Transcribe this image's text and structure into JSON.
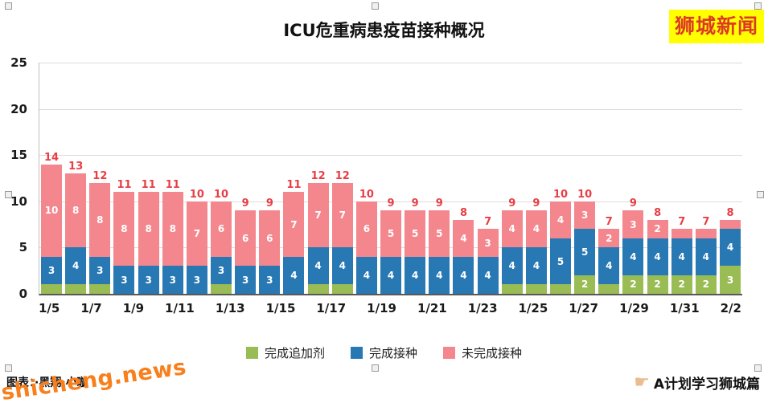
{
  "logo": {
    "text": "狮城新闻"
  },
  "chart_data": {
    "type": "bar",
    "stacked": true,
    "title": "ICU危重病患疫苗接种概况",
    "categories": [
      "1/5",
      "1/6",
      "1/7",
      "1/8",
      "1/9",
      "1/10",
      "1/11",
      "1/12",
      "1/13",
      "1/14",
      "1/15",
      "1/16",
      "1/17",
      "1/18",
      "1/19",
      "1/20",
      "1/21",
      "1/22",
      "1/23",
      "1/24",
      "1/25",
      "1/26",
      "1/27",
      "1/28",
      "1/29",
      "1/30",
      "1/31",
      "2/1",
      "2/2"
    ],
    "x_tick_step": 2,
    "series": [
      {
        "key": "booster",
        "name": "完成追加剂",
        "color": "#99bc55",
        "values": [
          1,
          1,
          1,
          0,
          0,
          0,
          0,
          1,
          0,
          0,
          0,
          1,
          1,
          0,
          0,
          0,
          0,
          0,
          0,
          1,
          1,
          1,
          2,
          1,
          2,
          2,
          2,
          2,
          3
        ]
      },
      {
        "key": "vaccinated",
        "name": "完成接种",
        "color": "#2878b4",
        "values": [
          3,
          4,
          3,
          3,
          3,
          3,
          3,
          3,
          3,
          3,
          4,
          4,
          4,
          4,
          4,
          4,
          4,
          4,
          4,
          4,
          4,
          5,
          5,
          4,
          4,
          4,
          4,
          4,
          4
        ]
      },
      {
        "key": "unvaccinated",
        "name": "未完成接种",
        "color": "#f4878d",
        "values": [
          10,
          8,
          8,
          8,
          8,
          8,
          7,
          6,
          6,
          6,
          7,
          7,
          7,
          6,
          5,
          5,
          5,
          4,
          3,
          4,
          4,
          4,
          3,
          2,
          3,
          2,
          1,
          1,
          1
        ]
      }
    ],
    "totals": [
      14,
      13,
      12,
      11,
      11,
      11,
      10,
      10,
      9,
      9,
      11,
      12,
      12,
      10,
      9,
      9,
      9,
      8,
      7,
      9,
      9,
      10,
      10,
      7,
      9,
      8,
      7,
      7,
      8
    ],
    "total_label_color": "#e83e45",
    "ylim": [
      0,
      25
    ],
    "yticks": [
      0,
      5,
      10,
      15,
      20,
      25
    ],
    "grid": true,
    "legend_position": "bottom",
    "min_segment_label": 2
  },
  "footer": {
    "credit": "图表：·黑翔·小璇",
    "watermark": "shicheng.news",
    "social_icon": "☛",
    "social": "A计划学习狮城篇"
  }
}
